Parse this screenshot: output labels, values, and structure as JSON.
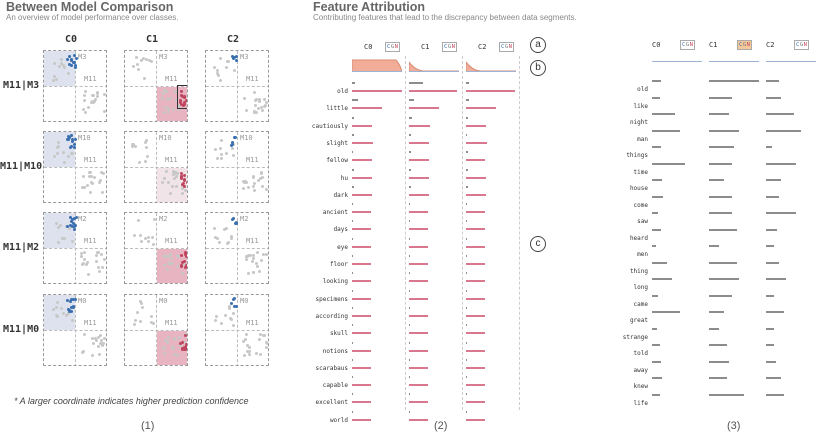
{
  "panel1": {
    "title": "Between Model Comparison",
    "subtitle": "An overview of model performance over classes.",
    "columns": [
      "C0",
      "C1",
      "C2"
    ],
    "rows": [
      {
        "label": "M11|M3",
        "tag": "M3",
        "tag2": "M11",
        "highlight": [
          "blue",
          "pink",
          "none"
        ]
      },
      {
        "label": "M11|M10",
        "tag": "M10",
        "tag2": "M11",
        "highlight": [
          "blue",
          "lpink",
          "none"
        ]
      },
      {
        "label": "M11|M2",
        "tag": "M2",
        "tag2": "M11",
        "highlight": [
          "blue",
          "pink",
          "none"
        ]
      },
      {
        "label": "M11|M0",
        "tag": "M0",
        "tag2": "M11",
        "highlight": [
          "blue",
          "pink",
          "none"
        ]
      }
    ],
    "footnote": "* A larger coordinate indicates higher prediction confidence",
    "caption": "(1)"
  },
  "panel2": {
    "title": "Feature Attribution",
    "subtitle": "Contributing features that lead to the discrepancy between data segments.",
    "columns": [
      "C0",
      "C1",
      "C2"
    ],
    "cgn_letters": [
      "C",
      "G",
      "N"
    ],
    "markers": [
      "a",
      "b",
      "c"
    ],
    "words": [
      "old",
      "little",
      "cautiously",
      "slight",
      "fellow",
      "hu",
      "dark",
      "ancient",
      "days",
      "eye",
      "floor",
      "looking",
      "specimens",
      "according",
      "skull",
      "notions",
      "scarabaus",
      "capable",
      "excellent",
      "world"
    ],
    "grey_values": [
      [
        0.05,
        0.28,
        0.05
      ],
      [
        0.12,
        0.1,
        0.06
      ],
      [
        0.04,
        0.06,
        0.04
      ],
      [
        0.03,
        0.04,
        0.02
      ],
      [
        0.02,
        0.03,
        0.03
      ],
      [
        0.03,
        0.03,
        0.03
      ],
      [
        0.03,
        0.03,
        0.03
      ],
      [
        0.02,
        0.02,
        0.02
      ],
      [
        0.02,
        0.02,
        0.02
      ],
      [
        0.02,
        0.02,
        0.02
      ],
      [
        0.01,
        0.01,
        0.01
      ],
      [
        0.01,
        0.01,
        0.01
      ],
      [
        0.01,
        0.01,
        0.01
      ],
      [
        0.01,
        0.01,
        0.01
      ],
      [
        0.01,
        0.01,
        0.01
      ],
      [
        0.01,
        0.01,
        0.01
      ],
      [
        0.01,
        0.01,
        0.01
      ],
      [
        0.01,
        0.01,
        0.01
      ],
      [
        0.01,
        0.01,
        0.01
      ],
      [
        0.01,
        0.01,
        0.01
      ]
    ],
    "pink_values": [
      [
        1.0,
        0.95,
        0.98
      ],
      [
        0.6,
        0.6,
        0.6
      ],
      [
        0.4,
        0.42,
        0.4
      ],
      [
        0.42,
        0.4,
        0.42
      ],
      [
        0.4,
        0.4,
        0.38
      ],
      [
        0.4,
        0.4,
        0.4
      ],
      [
        0.4,
        0.4,
        0.4
      ],
      [
        0.38,
        0.38,
        0.38
      ],
      [
        0.38,
        0.38,
        0.38
      ],
      [
        0.38,
        0.38,
        0.38
      ],
      [
        0.38,
        0.38,
        0.38
      ],
      [
        0.38,
        0.38,
        0.38
      ],
      [
        0.38,
        0.38,
        0.38
      ],
      [
        0.38,
        0.38,
        0.38
      ],
      [
        0.38,
        0.38,
        0.38
      ],
      [
        0.38,
        0.38,
        0.38
      ],
      [
        0.38,
        0.38,
        0.38
      ],
      [
        0.38,
        0.38,
        0.38
      ],
      [
        0.38,
        0.38,
        0.38
      ],
      [
        0.38,
        0.38,
        0.38
      ]
    ],
    "caption": "(2)"
  },
  "panel3": {
    "columns": [
      "C0",
      "C1",
      "C2"
    ],
    "cgn_letters": [
      "C",
      "G",
      "N"
    ],
    "words": [
      "old",
      "like",
      "night",
      "man",
      "things",
      "time",
      "house",
      "come",
      "saw",
      "heard",
      "men",
      "thing",
      "long",
      "came",
      "great",
      "strange",
      "told",
      "away",
      "knew",
      "life"
    ],
    "values": [
      [
        0.18,
        1.0,
        0.25
      ],
      [
        0.15,
        0.45,
        0.3
      ],
      [
        0.45,
        0.4,
        0.55
      ],
      [
        0.55,
        0.6,
        0.7
      ],
      [
        0.18,
        0.5,
        0.12
      ],
      [
        0.65,
        0.45,
        0.6
      ],
      [
        0.2,
        0.3,
        0.3
      ],
      [
        0.22,
        0.45,
        0.25
      ],
      [
        0.12,
        0.45,
        0.6
      ],
      [
        0.18,
        0.55,
        0.22
      ],
      [
        0.08,
        0.2,
        0.15
      ],
      [
        0.3,
        0.55,
        0.25
      ],
      [
        0.4,
        0.6,
        0.4
      ],
      [
        0.12,
        0.45,
        0.15
      ],
      [
        0.55,
        0.3,
        0.35
      ],
      [
        0.1,
        0.2,
        0.15
      ],
      [
        0.15,
        0.35,
        0.15
      ],
      [
        0.18,
        0.4,
        0.2
      ],
      [
        0.2,
        0.35,
        0.3
      ],
      [
        0.15,
        0.7,
        0.35
      ]
    ],
    "caption": "(3)"
  },
  "colors": {
    "grey_bar": "#8c8c8c",
    "pink_bar": "#d9778f",
    "blue_quadrant": "#dde2ee",
    "pink_quadrant": "#e8b4c2",
    "blue_dot": "#3a6fb0",
    "red_dot": "#c0455e"
  }
}
